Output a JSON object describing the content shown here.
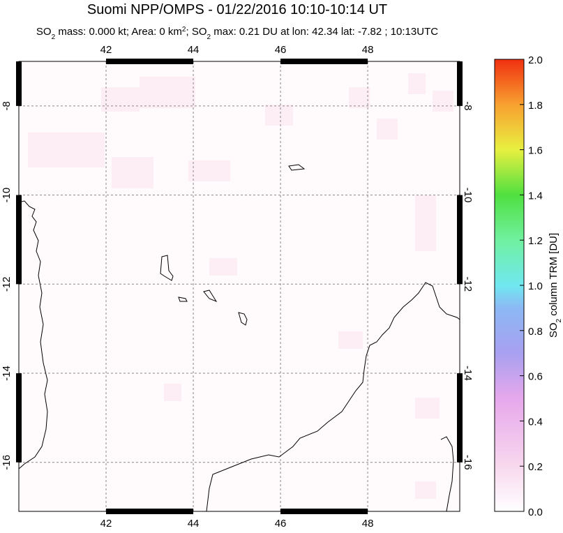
{
  "chart_data": {
    "type": "map",
    "title": "Suomi NPP/OMPS - 01/22/2016 10:10-10:14 UT",
    "subtitle": [
      "SO",
      "2",
      " mass: 0.000 kt; Area: 0 km",
      "2",
      "; SO",
      "2",
      " max: 0.21 DU at lon: 42.34 lat: -7.82 ; 10:13UTC"
    ],
    "xlim": [
      40,
      50.11
    ],
    "ylim": [
      -17.1,
      -7
    ],
    "xticks": [
      42,
      44,
      46,
      48
    ],
    "yticks": [
      -8,
      -10,
      -12,
      -14,
      -16
    ],
    "grid": true,
    "colorbar": {
      "label": [
        "SO",
        "2",
        " column TRM [DU]"
      ],
      "lim": [
        0,
        2
      ],
      "ticks": [
        {
          "value": 0,
          "label": "0.0"
        },
        {
          "value": 0.2,
          "label": "0.2"
        },
        {
          "value": 0.4,
          "label": "0.4"
        },
        {
          "value": 0.6,
          "label": "0.6"
        },
        {
          "value": 0.8,
          "label": "0.8"
        },
        {
          "value": 1,
          "label": "1.0"
        },
        {
          "value": 1.2,
          "label": "1.2"
        },
        {
          "value": 1.4,
          "label": "1.4"
        },
        {
          "value": 1.6,
          "label": "1.6"
        },
        {
          "value": 1.8,
          "label": "1.8"
        },
        {
          "value": 2,
          "label": "2.0"
        }
      ]
    }
  }
}
